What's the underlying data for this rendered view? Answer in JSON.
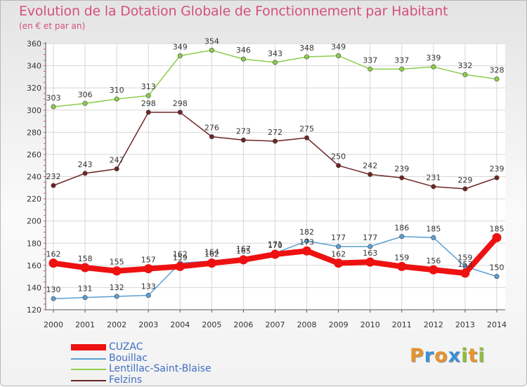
{
  "title": "Evolution de la Dotation Globale de Fonctionnement par Habitant",
  "subtitle": "(en € et par an)",
  "logo": {
    "text": "Proxiti",
    "letters": [
      {
        "ch": "P",
        "color": "#e8932c"
      },
      {
        "ch": "r",
        "color": "#3a8fd8"
      },
      {
        "ch": "o",
        "color": "#e8932c"
      },
      {
        "ch": "x",
        "color": "#3a8fd8"
      },
      {
        "ch": "i",
        "color": "#8fbf3a"
      },
      {
        "ch": "t",
        "color": "#e8932c"
      },
      {
        "ch": "i",
        "color": "#8fbf3a"
      }
    ]
  },
  "chart_data": {
    "type": "line",
    "title": "Evolution de la Dotation Globale de Fonctionnement par Habitant",
    "subtitle": "(en € et par an)",
    "x": [
      "2000",
      "2001",
      "2002",
      "2003",
      "2004",
      "2005",
      "2006",
      "2007",
      "2008",
      "2009",
      "2010",
      "2011",
      "2012",
      "2013",
      "2014"
    ],
    "ylim": [
      120,
      360
    ],
    "yticks": [
      120,
      140,
      160,
      180,
      200,
      220,
      240,
      260,
      280,
      300,
      320,
      340,
      360
    ],
    "grid": true,
    "legend_position": "bottom-left",
    "series": [
      {
        "name": "CUZAC",
        "color": "#ee1111",
        "emphasis": true,
        "values": [
          162,
          158,
          155,
          157,
          159,
          162,
          165,
          170,
          173,
          162,
          163,
          159,
          156,
          153,
          185
        ],
        "labels": [
          "162",
          "158",
          "155",
          "157",
          "159",
          "162",
          "165",
          "170",
          "173",
          "162",
          "163",
          "159",
          "156",
          "153",
          "185"
        ]
      },
      {
        "name": "Bouillac",
        "color": "#5a9fd4",
        "emphasis": false,
        "values": [
          130,
          131,
          132,
          133,
          162,
          164,
          167,
          171,
          182,
          177,
          177,
          186,
          185,
          159,
          150
        ],
        "labels": [
          "130",
          "131",
          "132",
          "133",
          "162",
          "164",
          "167",
          "171",
          "182",
          "177",
          "177",
          "186",
          "185",
          "159",
          "150"
        ]
      },
      {
        "name": "Lentillac-Saint-Blaise",
        "color": "#8ccd4a",
        "emphasis": false,
        "values": [
          303,
          306,
          310,
          313,
          349,
          354,
          346,
          343,
          348,
          349,
          337,
          337,
          339,
          332,
          328
        ],
        "labels": [
          "303",
          "306",
          "310",
          "313",
          "349",
          "354",
          "346",
          "343",
          "348",
          "349",
          "337",
          "337",
          "339",
          "332",
          "328"
        ]
      },
      {
        "name": "Felzins",
        "color": "#6e2424",
        "emphasis": false,
        "values": [
          232,
          243,
          247,
          298,
          298,
          276,
          273,
          272,
          275,
          250,
          242,
          239,
          231,
          229,
          239
        ],
        "labels": [
          "232",
          "243",
          "247",
          "298",
          "298",
          "276",
          "273",
          "272",
          "275",
          "250",
          "242",
          "239",
          "231",
          "229",
          "239"
        ]
      }
    ]
  }
}
